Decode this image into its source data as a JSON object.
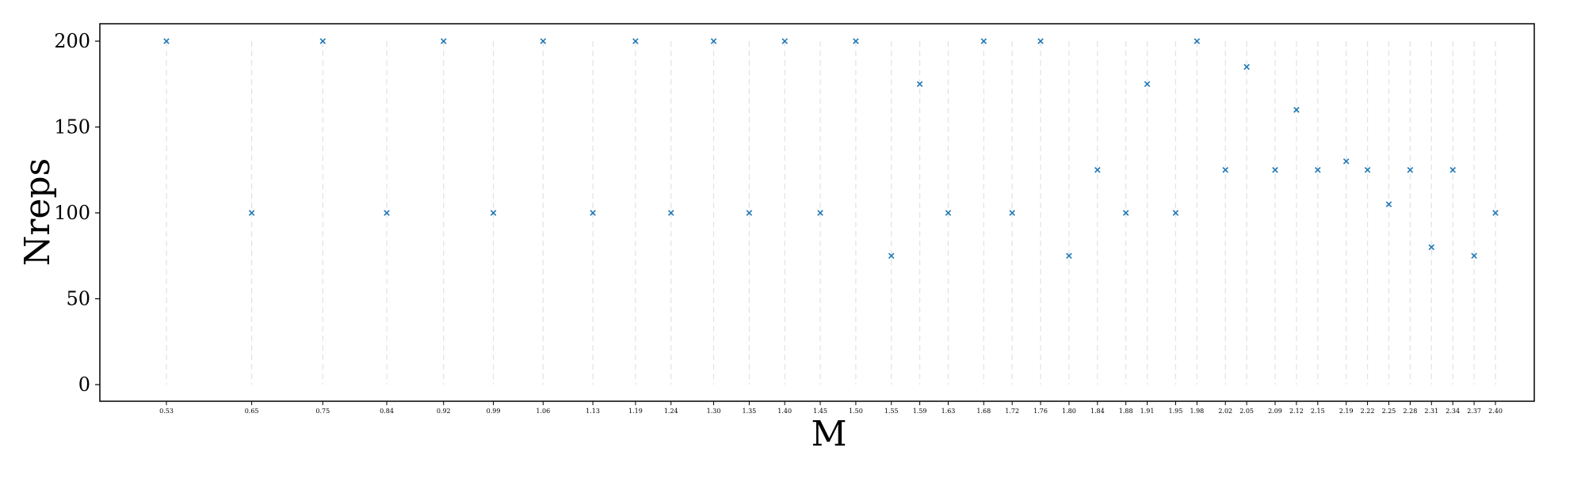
{
  "chart_data": {
    "type": "scatter",
    "title": "",
    "xlabel": "M",
    "ylabel": "Nreps",
    "ylim": [
      -10,
      210
    ],
    "yticks": [
      0,
      50,
      100,
      150,
      200
    ],
    "grid": "vertical dashed lines at each M value",
    "marker": "x",
    "color": "#1f77b4",
    "x": [
      0.53,
      0.65,
      0.75,
      0.84,
      0.92,
      0.99,
      1.06,
      1.13,
      1.19,
      1.24,
      1.3,
      1.35,
      1.4,
      1.45,
      1.5,
      1.55,
      1.59,
      1.63,
      1.68,
      1.72,
      1.76,
      1.8,
      1.84,
      1.88,
      1.91,
      1.95,
      1.98,
      2.02,
      2.05,
      2.09,
      2.12,
      2.15,
      2.19,
      2.22,
      2.25,
      2.28,
      2.31,
      2.34,
      2.37,
      2.4
    ],
    "xtick_labels": [
      "0.53",
      "0.65",
      "0.75",
      "0.84",
      "0.92",
      "0.99",
      "1.06",
      "1.13",
      "1.19",
      "1.24",
      "1.30",
      "1.35",
      "1.40",
      "1.45",
      "1.50",
      "1.55",
      "1.59",
      "1.63",
      "1.68",
      "1.72",
      "1.76",
      "1.80",
      "1.84",
      "1.88",
      "1.91",
      "1.95",
      "1.98",
      "2.02",
      "2.05",
      "2.09",
      "2.12",
      "2.15",
      "2.19",
      "2.22",
      "2.25",
      "2.28",
      "2.31",
      "2.34",
      "2.37",
      "2.40"
    ],
    "y": [
      200,
      100,
      200,
      100,
      200,
      100,
      200,
      100,
      200,
      100,
      200,
      100,
      200,
      100,
      200,
      75,
      175,
      100,
      200,
      100,
      200,
      75,
      125,
      100,
      175,
      100,
      200,
      125,
      185,
      125,
      160,
      125,
      130,
      125,
      105,
      125,
      80,
      125,
      75,
      100
    ]
  }
}
